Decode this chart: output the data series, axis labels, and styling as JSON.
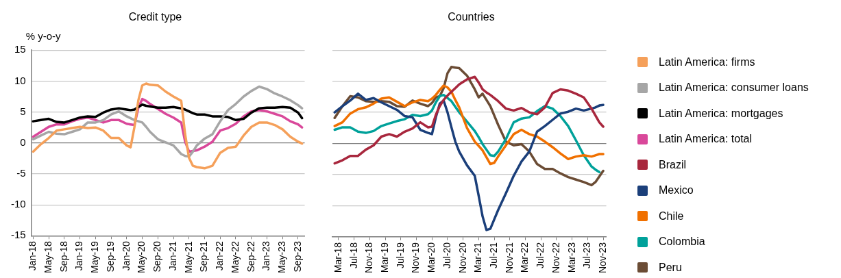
{
  "chart_data": [
    {
      "type": "line",
      "title": "Credit type",
      "ylabel": "% y-o-y",
      "grid": "y",
      "legend": "right",
      "x": [
        "2018-01",
        "2018-03",
        "2018-05",
        "2018-07",
        "2018-09",
        "2018-11",
        "2019-01",
        "2019-03",
        "2019-05",
        "2019-07",
        "2019-09",
        "2019-11",
        "2020-01",
        "2020-02",
        "2020-03",
        "2020-04",
        "2020-05",
        "2020-06",
        "2020-07",
        "2020-09",
        "2020-11",
        "2021-01",
        "2021-03",
        "2021-04",
        "2021-05",
        "2021-06",
        "2021-07",
        "2021-09",
        "2021-11",
        "2022-01",
        "2022-03",
        "2022-05",
        "2022-07",
        "2022-09",
        "2022-11",
        "2023-01",
        "2023-03",
        "2023-05",
        "2023-07",
        "2023-09",
        "2023-10"
      ],
      "xlim": [
        "2017-12-17",
        "2023-10-22"
      ],
      "xticks": [
        {
          "value": "2018-01",
          "label": "Jan-18"
        },
        {
          "value": "2018-05",
          "label": "May-18"
        },
        {
          "value": "2018-09",
          "label": "Sep-18"
        },
        {
          "value": "2019-01",
          "label": "Jan-19"
        },
        {
          "value": "2019-05",
          "label": "May-19"
        },
        {
          "value": "2019-09",
          "label": "Sep-19"
        },
        {
          "value": "2020-01",
          "label": "Jan-20"
        },
        {
          "value": "2020-05",
          "label": "May-20"
        },
        {
          "value": "2020-09",
          "label": "Sep-20"
        },
        {
          "value": "2021-01",
          "label": "Jan-21"
        },
        {
          "value": "2021-05",
          "label": "May-21"
        },
        {
          "value": "2021-09",
          "label": "Sep-21"
        },
        {
          "value": "2022-01",
          "label": "Jan-22"
        },
        {
          "value": "2022-05",
          "label": "May-22"
        },
        {
          "value": "2022-09",
          "label": "Sep-22"
        },
        {
          "value": "2023-01",
          "label": "Jan-23"
        },
        {
          "value": "2023-05",
          "label": "May-23"
        },
        {
          "value": "2023-09",
          "label": "Sep-23"
        }
      ],
      "ylim": [
        -15,
        15
      ],
      "yticks": [
        -15,
        -10,
        -5,
        0,
        5,
        10,
        15
      ],
      "series": [
        {
          "name": "Latin America: firms",
          "color": "#f5a05a",
          "values": [
            -1.4,
            -0.2,
            0.8,
            2.0,
            2.2,
            2.4,
            2.6,
            2.4,
            2.5,
            2.0,
            0.8,
            0.8,
            -0.4,
            -0.7,
            2.6,
            6.9,
            9.3,
            9.6,
            9.4,
            9.3,
            8.3,
            7.5,
            6.8,
            1.4,
            -2.4,
            -3.7,
            -3.9,
            -4.1,
            -3.7,
            -1.6,
            -0.8,
            -0.6,
            1.2,
            2.6,
            3.3,
            3.3,
            2.9,
            2.2,
            1.0,
            0.2,
            -0.1
          ]
        },
        {
          "name": "Latin America: consumer loans",
          "color": "#a6a6a6",
          "values": [
            0.6,
            1.2,
            1.8,
            1.5,
            1.4,
            1.8,
            2.2,
            3.3,
            3.3,
            3.7,
            4.6,
            5.1,
            4.3,
            4.0,
            3.7,
            3.5,
            3.3,
            2.6,
            1.8,
            0.6,
            0.1,
            -0.4,
            -1.8,
            -2.1,
            -2.2,
            -1.4,
            -0.4,
            0.7,
            1.4,
            3.5,
            5.3,
            6.3,
            7.5,
            8.4,
            9.1,
            8.7,
            8.0,
            7.5,
            6.9,
            6.1,
            5.6
          ]
        },
        {
          "name": "Latin America: mortgages",
          "color": "#000000",
          "values": [
            3.5,
            3.7,
            3.9,
            3.4,
            3.3,
            3.7,
            4.1,
            4.3,
            4.2,
            4.9,
            5.4,
            5.6,
            5.4,
            5.3,
            5.4,
            5.8,
            6.2,
            6.0,
            5.9,
            5.7,
            5.7,
            5.8,
            5.6,
            5.4,
            5.1,
            4.8,
            4.6,
            4.6,
            4.3,
            4.3,
            4.2,
            3.7,
            3.9,
            4.9,
            5.6,
            5.7,
            5.7,
            5.8,
            5.7,
            4.9,
            4.0
          ]
        },
        {
          "name": "Latin America: total",
          "color": "#d9489a",
          "values": [
            1.0,
            1.8,
            2.6,
            3.0,
            3.0,
            3.5,
            3.9,
            4.1,
            3.7,
            3.3,
            3.7,
            3.7,
            3.1,
            3.0,
            2.9,
            5.7,
            7.1,
            6.8,
            6.3,
            5.5,
            4.7,
            4.1,
            3.3,
            0.2,
            -1.4,
            -1.3,
            -1.2,
            -0.6,
            0.2,
            2.0,
            2.4,
            3.1,
            4.3,
            5.1,
            5.3,
            5.1,
            4.7,
            4.3,
            3.5,
            3.0,
            2.5
          ]
        }
      ]
    },
    {
      "type": "line",
      "title": "Countries",
      "grid": "y",
      "legend": "right",
      "tick_labels": "x",
      "x": [
        "2018-02",
        "2018-04",
        "2018-06",
        "2018-08",
        "2018-10",
        "2018-12",
        "2019-02",
        "2019-04",
        "2019-06",
        "2019-08",
        "2019-10",
        "2019-12",
        "2020-02",
        "2020-03",
        "2020-04",
        "2020-05",
        "2020-06",
        "2020-07",
        "2020-08",
        "2020-09",
        "2020-10",
        "2020-12",
        "2021-02",
        "2021-03",
        "2021-04",
        "2021-05",
        "2021-06",
        "2021-07",
        "2021-08",
        "2021-10",
        "2021-12",
        "2022-02",
        "2022-04",
        "2022-06",
        "2022-08",
        "2022-10",
        "2022-12",
        "2023-02",
        "2023-04",
        "2023-06",
        "2023-08",
        "2023-09",
        "2023-10",
        "2023-11"
      ],
      "xlim": [
        "2018-01-14",
        "2023-11-25"
      ],
      "xticks": [
        {
          "value": "2018-03",
          "label": "Mar-18"
        },
        {
          "value": "2018-07",
          "label": "Jul-18"
        },
        {
          "value": "2018-11",
          "label": "Nov-18"
        },
        {
          "value": "2019-03",
          "label": "Mar-19"
        },
        {
          "value": "2019-07",
          "label": "Jul-19"
        },
        {
          "value": "2019-11",
          "label": "Nov-19"
        },
        {
          "value": "2020-03",
          "label": "Mar-20"
        },
        {
          "value": "2020-07",
          "label": "Jul-20"
        },
        {
          "value": "2020-11",
          "label": "Nov-20"
        },
        {
          "value": "2021-03",
          "label": "Mar-21"
        },
        {
          "value": "2021-07",
          "label": "Jul-21"
        },
        {
          "value": "2021-11",
          "label": "Nov-21"
        },
        {
          "value": "2022-03",
          "label": "Mar-22"
        },
        {
          "value": "2022-07",
          "label": "Jul-22"
        },
        {
          "value": "2022-11",
          "label": "Nov-22"
        },
        {
          "value": "2023-03",
          "label": "Mar-23"
        },
        {
          "value": "2023-07",
          "label": "Jul-23"
        },
        {
          "value": "2023-11",
          "label": "Nov-23"
        }
      ],
      "ylim": [
        -15,
        15
      ],
      "yticks": [
        -15,
        -10,
        -5,
        0,
        5,
        10,
        15
      ],
      "series": [
        {
          "name": "Brazil",
          "color": "#a8273d",
          "values": [
            -3.2,
            -2.7,
            -2.0,
            -2.0,
            -1.0,
            -0.3,
            1.1,
            1.5,
            1.1,
            1.9,
            2.4,
            3.4,
            2.6,
            2.7,
            4.6,
            6.0,
            7.0,
            7.7,
            8.3,
            8.9,
            9.5,
            10.3,
            10.7,
            9.8,
            8.7,
            8.2,
            7.8,
            7.3,
            6.8,
            5.6,
            5.3,
            5.7,
            5.0,
            4.7,
            5.8,
            8.1,
            8.7,
            8.5,
            8.0,
            7.4,
            5.6,
            4.5,
            3.4,
            2.7
          ]
        },
        {
          "name": "Mexico",
          "color": "#1b3f7a",
          "values": [
            5.0,
            6.0,
            6.9,
            8.0,
            7.0,
            7.3,
            6.6,
            6.0,
            5.4,
            4.4,
            4.2,
            2.2,
            1.7,
            1.5,
            4.2,
            6.4,
            6.9,
            5.0,
            2.6,
            0.3,
            -1.3,
            -3.5,
            -5.2,
            -8.4,
            -11.7,
            -13.9,
            -13.7,
            -12.2,
            -10.7,
            -8.0,
            -5.2,
            -2.9,
            -1.3,
            1.9,
            2.8,
            3.8,
            4.8,
            5.1,
            5.6,
            5.3,
            5.6,
            5.8,
            6.1,
            6.2
          ]
        },
        {
          "name": "Chile",
          "color": "#f07000",
          "values": [
            2.8,
            3.4,
            4.8,
            5.5,
            5.8,
            6.4,
            7.2,
            7.4,
            6.7,
            6.0,
            6.6,
            7.0,
            6.8,
            7.2,
            7.8,
            8.6,
            9.3,
            9.0,
            8.3,
            7.0,
            5.8,
            2.5,
            0.3,
            -0.4,
            -1.1,
            -2.2,
            -3.3,
            -3.1,
            -2.1,
            -0.3,
            1.5,
            2.2,
            1.5,
            1.1,
            0.3,
            -0.6,
            -1.6,
            -2.5,
            -2.1,
            -1.9,
            -2.1,
            -1.9,
            -1.7,
            -1.7
          ]
        },
        {
          "name": "Colombia",
          "color": "#00a19a",
          "values": [
            2.2,
            2.6,
            2.6,
            1.9,
            1.7,
            2.0,
            2.8,
            3.2,
            3.6,
            3.9,
            4.6,
            4.4,
            4.7,
            5.3,
            6.6,
            7.6,
            7.8,
            7.3,
            6.8,
            5.9,
            5.0,
            3.5,
            2.0,
            1.0,
            -0.1,
            -1.0,
            -1.9,
            -2.0,
            -1.3,
            0.7,
            3.4,
            4.0,
            4.2,
            5.2,
            6.0,
            5.6,
            4.4,
            2.8,
            0.5,
            -1.9,
            -3.7,
            -4.2,
            -4.6,
            null
          ]
        },
        {
          "name": "Peru",
          "color": "#6b4c35",
          "values": [
            4.1,
            6.0,
            7.6,
            7.4,
            6.8,
            6.7,
            6.8,
            6.7,
            6.0,
            5.9,
            6.9,
            6.4,
            6.0,
            6.5,
            7.4,
            7.6,
            8.9,
            11.3,
            12.3,
            12.2,
            12.1,
            10.9,
            8.7,
            7.4,
            8.0,
            7.0,
            6.0,
            4.5,
            3.0,
            0.3,
            -0.3,
            -0.1,
            -1.3,
            -3.3,
            -4.1,
            -4.1,
            -4.8,
            -5.4,
            -5.8,
            -6.2,
            -6.7,
            -6.2,
            -5.3,
            -4.4
          ]
        }
      ]
    }
  ]
}
